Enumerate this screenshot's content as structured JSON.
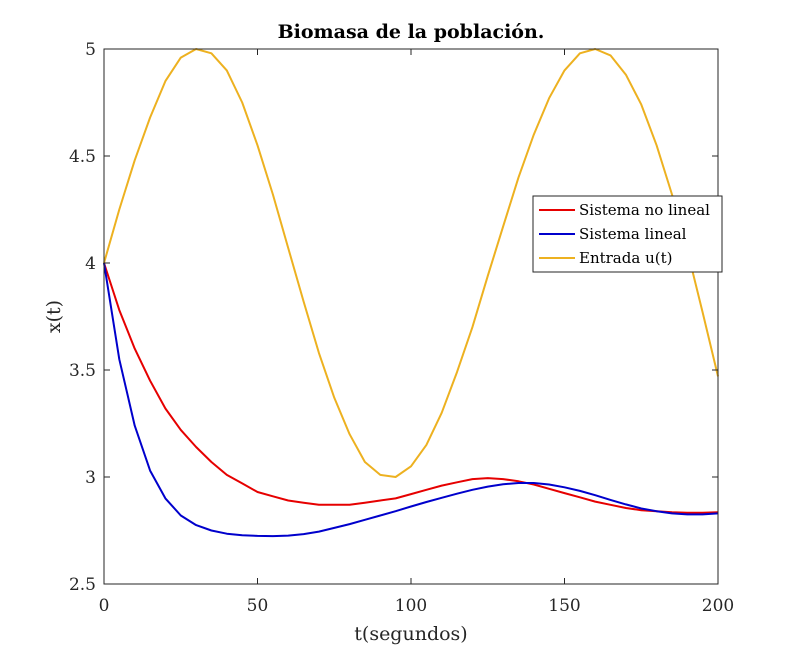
{
  "chart_data": {
    "type": "line",
    "title": "Biomasa de la población.",
    "xlabel": "t(segundos)",
    "ylabel": "x(t)",
    "xlim": [
      0,
      200
    ],
    "ylim": [
      2.5,
      5
    ],
    "xticks": [
      0,
      50,
      100,
      150,
      200
    ],
    "xtick_labels": [
      "0",
      "50",
      "100",
      "150",
      "200"
    ],
    "yticks": [
      2.5,
      3,
      3.5,
      4,
      4.5,
      5
    ],
    "ytick_labels": [
      "2.5",
      "3",
      "3.5",
      "4",
      "4.5",
      "5"
    ],
    "grid": false,
    "legend_position": "right",
    "x": [
      0,
      5,
      10,
      15,
      20,
      25,
      30,
      35,
      40,
      45,
      50,
      55,
      60,
      65,
      70,
      75,
      80,
      85,
      90,
      95,
      100,
      105,
      110,
      115,
      120,
      125,
      130,
      135,
      140,
      145,
      150,
      155,
      160,
      165,
      170,
      175,
      180,
      185,
      190,
      195,
      200
    ],
    "series": [
      {
        "name": "Sistema no lineal",
        "color": "#e60000",
        "values": [
          4.0,
          3.78,
          3.6,
          3.45,
          3.32,
          3.22,
          3.14,
          3.07,
          3.01,
          2.97,
          2.93,
          2.91,
          2.89,
          2.88,
          2.87,
          2.87,
          2.87,
          2.88,
          2.89,
          2.9,
          2.92,
          2.94,
          2.96,
          2.975,
          2.99,
          2.995,
          2.99,
          2.98,
          2.965,
          2.945,
          2.925,
          2.905,
          2.885,
          2.87,
          2.855,
          2.845,
          2.84,
          2.835,
          2.833,
          2.833,
          2.835
        ]
      },
      {
        "name": "Sistema lineal",
        "color": "#0000cc",
        "values": [
          4.0,
          3.55,
          3.24,
          3.03,
          2.9,
          2.82,
          2.775,
          2.75,
          2.735,
          2.728,
          2.725,
          2.724,
          2.726,
          2.733,
          2.745,
          2.762,
          2.78,
          2.8,
          2.82,
          2.84,
          2.862,
          2.883,
          2.903,
          2.922,
          2.94,
          2.955,
          2.966,
          2.972,
          2.972,
          2.965,
          2.952,
          2.935,
          2.915,
          2.893,
          2.872,
          2.853,
          2.84,
          2.83,
          2.825,
          2.825,
          2.83
        ]
      },
      {
        "name": "Entrada u(t)",
        "color": "#edb120",
        "values": [
          4.0,
          4.25,
          4.48,
          4.68,
          4.85,
          4.96,
          5.0,
          4.98,
          4.9,
          4.75,
          4.55,
          4.32,
          4.07,
          3.82,
          3.58,
          3.37,
          3.2,
          3.07,
          3.01,
          3.0,
          3.05,
          3.15,
          3.3,
          3.49,
          3.7,
          3.94,
          4.17,
          4.4,
          4.6,
          4.77,
          4.9,
          4.98,
          5.0,
          4.97,
          4.88,
          4.74,
          4.55,
          4.32,
          4.06,
          3.77,
          3.47
        ]
      }
    ]
  }
}
